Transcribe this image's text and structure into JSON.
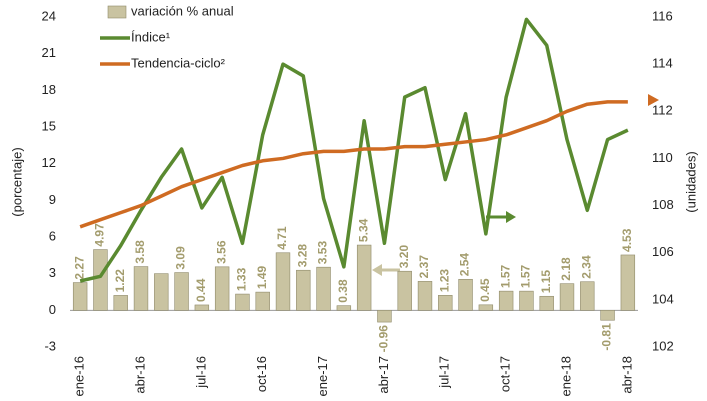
{
  "chart_data": {
    "type": "bar",
    "categories": [
      "ene-16",
      null,
      null,
      "abr-16",
      null,
      null,
      "jul-16",
      null,
      null,
      "oct-16",
      null,
      null,
      "ene-17",
      null,
      null,
      "abr-17",
      null,
      null,
      "jul-17",
      null,
      null,
      "oct-17",
      null,
      null,
      "ene-18",
      null,
      null,
      "abr-18"
    ],
    "series": [
      {
        "name": "variación % anual",
        "type": "bar",
        "color": "#c9c3a1",
        "axis": "y",
        "values": [
          2.27,
          4.97,
          1.22,
          3.58,
          3.0,
          3.09,
          0.44,
          3.56,
          1.33,
          1.49,
          4.71,
          3.28,
          3.53,
          0.38,
          5.34,
          -0.96,
          3.2,
          2.37,
          1.23,
          2.54,
          0.45,
          1.57,
          1.57,
          1.15,
          2.18,
          2.34,
          -0.81,
          4.53
        ],
        "value_labels": [
          "2.27",
          "4.97",
          "1.22",
          "3.58",
          null,
          "3.09",
          "0.44",
          "3.56",
          "1.33",
          "1.49",
          "4.71",
          "3.28",
          "3.53",
          "0.38",
          "5.34",
          "-0.96",
          "3.20",
          "2.37",
          "1.23",
          "2.54",
          "0.45",
          "1.57",
          "1.57",
          "1.15",
          "2.18",
          "2.34",
          "-0.81",
          "4.53"
        ]
      },
      {
        "name": "Índice¹",
        "type": "line",
        "color": "#5a8a30",
        "axis": "y2",
        "values": [
          104.8,
          105.0,
          106.3,
          107.8,
          109.2,
          110.4,
          107.9,
          109.2,
          106.4,
          111.0,
          114.0,
          113.5,
          108.3,
          105.4,
          111.6,
          106.4,
          112.6,
          113.0,
          109.1,
          111.9,
          106.8,
          112.6,
          115.9,
          114.8,
          110.8,
          107.8,
          110.8,
          111.2
        ]
      },
      {
        "name": "Tendencia-ciclo²",
        "type": "line",
        "color": "#cf6b22",
        "axis": "y2",
        "values": [
          107.1,
          107.4,
          107.7,
          108.0,
          108.4,
          108.8,
          109.1,
          109.4,
          109.7,
          109.9,
          110.0,
          110.2,
          110.3,
          110.3,
          110.4,
          110.4,
          110.5,
          110.5,
          110.6,
          110.7,
          110.8,
          111.0,
          111.3,
          111.6,
          112.0,
          112.3,
          112.4,
          112.4
        ]
      }
    ],
    "y_label": "(porcentaje)",
    "y2_label": "(unidades)",
    "ylim": [
      -3,
      24
    ],
    "yticks": [
      -3,
      0,
      3,
      6,
      9,
      12,
      15,
      18,
      21,
      24
    ],
    "y2lim": [
      102,
      116
    ],
    "y2ticks": [
      102,
      104,
      106,
      108,
      110,
      112,
      114,
      116
    ]
  }
}
